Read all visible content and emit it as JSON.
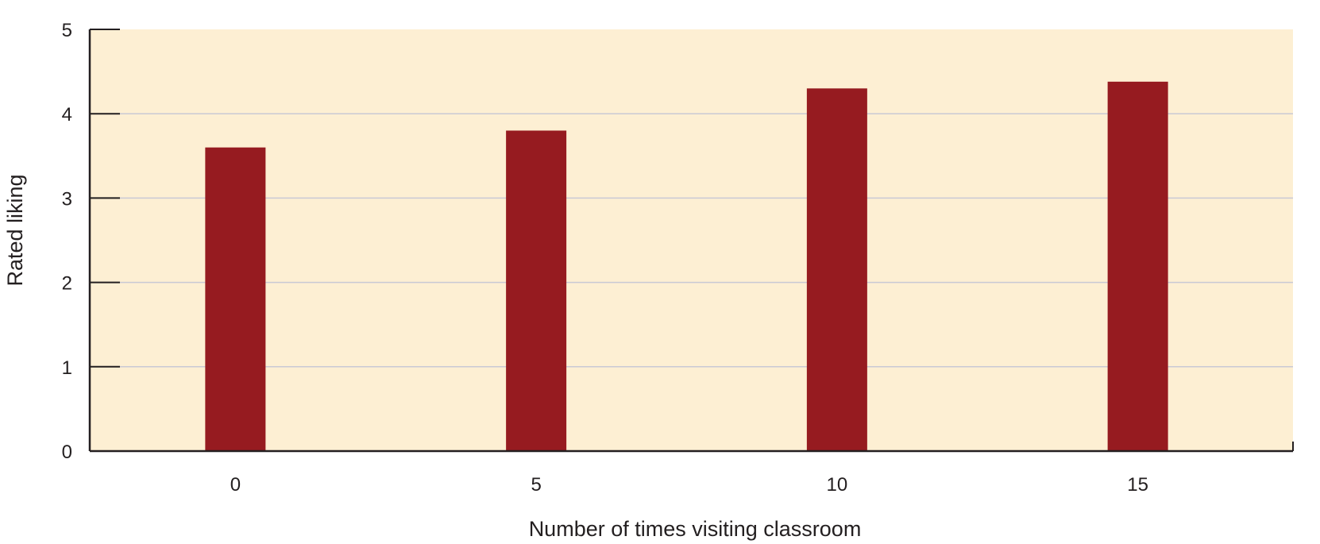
{
  "chart_data": {
    "type": "bar",
    "title": "",
    "xlabel": "Number of times visiting classroom",
    "ylabel": "Rated liking",
    "categories": [
      "0",
      "5",
      "10",
      "15"
    ],
    "values": [
      3.6,
      3.8,
      4.3,
      4.38
    ],
    "ylim": [
      0,
      5
    ],
    "yticks": [
      "0",
      "1",
      "2",
      "3",
      "4",
      "5"
    ],
    "grid": true,
    "legend": "none",
    "colors": {
      "bar": "#961b20",
      "plot_background": "#fdefd3",
      "grid": "#c9c9d4",
      "axis": "#231f20"
    }
  }
}
